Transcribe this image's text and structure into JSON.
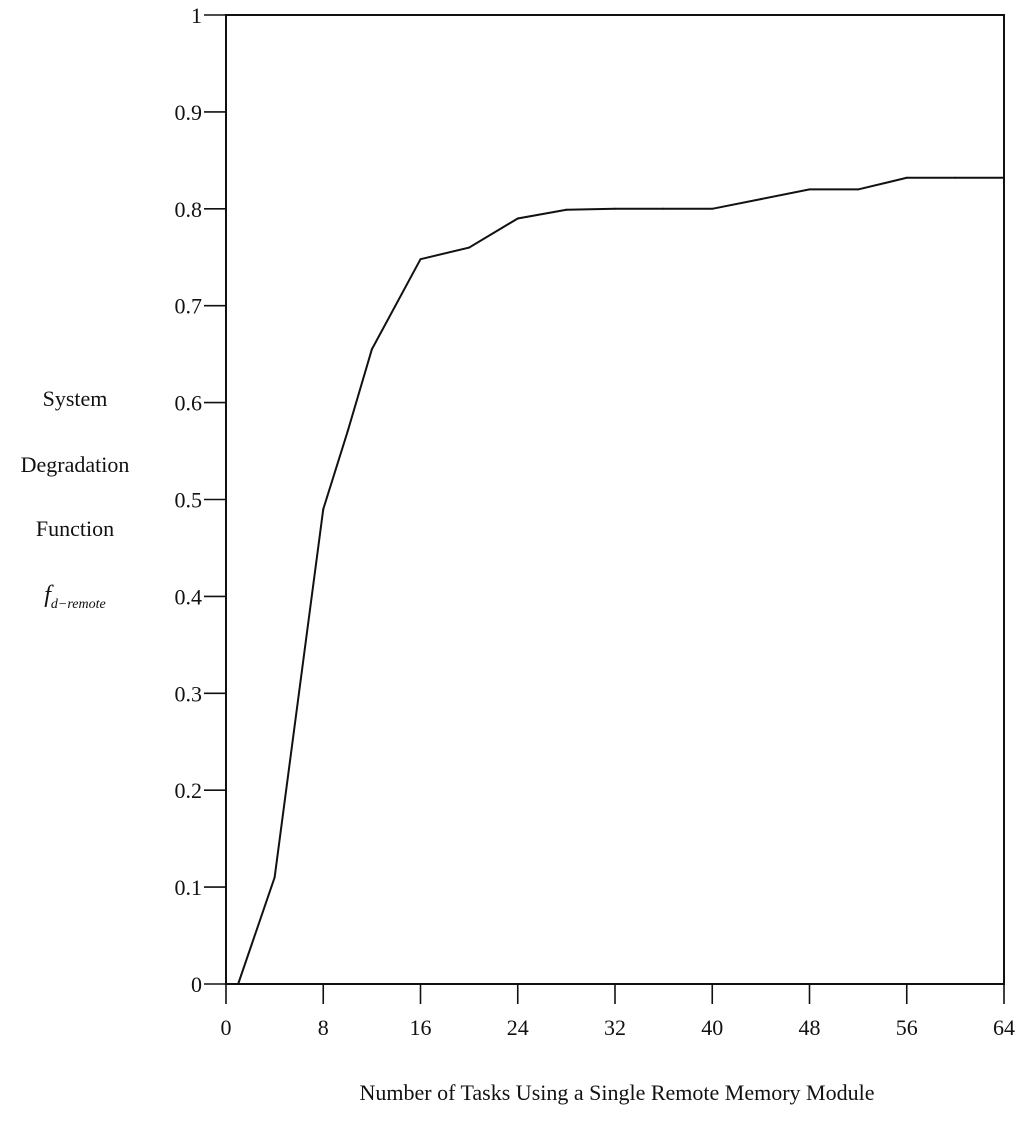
{
  "chart_data": {
    "type": "line",
    "title": "",
    "xlabel": "Number of Tasks Using a Single Remote Memory Module",
    "ylabel": {
      "line1": "System",
      "line2": "Degradation",
      "line3": "Function",
      "symbol": "f",
      "subscript": "d−remote"
    },
    "xlim": [
      0,
      64
    ],
    "ylim": [
      0,
      1
    ],
    "x_ticks": [
      0,
      8,
      16,
      24,
      32,
      40,
      48,
      56,
      64
    ],
    "x_tick_labels": [
      "0",
      "8",
      "16",
      "24",
      "32",
      "40",
      "48",
      "56",
      "64"
    ],
    "y_ticks": [
      0,
      0.1,
      0.2,
      0.3,
      0.4,
      0.5,
      0.6,
      0.7,
      0.8,
      0.9,
      1
    ],
    "y_tick_labels": [
      "0",
      "0.1",
      "0.2",
      "0.3",
      "0.4",
      "0.5",
      "0.6",
      "0.7",
      "0.8",
      "0.9",
      "1"
    ],
    "grid": false,
    "series": [
      {
        "x": [
          1,
          4,
          8,
          10,
          12,
          16,
          20,
          24,
          28,
          32,
          36,
          40,
          44,
          48,
          52,
          56,
          60,
          64
        ],
        "y": [
          0,
          0.11,
          0.49,
          0.57,
          0.655,
          0.748,
          0.76,
          0.79,
          0.799,
          0.8,
          0.8,
          0.8,
          0.81,
          0.82,
          0.82,
          0.832,
          0.832,
          0.832
        ]
      }
    ],
    "color": "#111111"
  }
}
